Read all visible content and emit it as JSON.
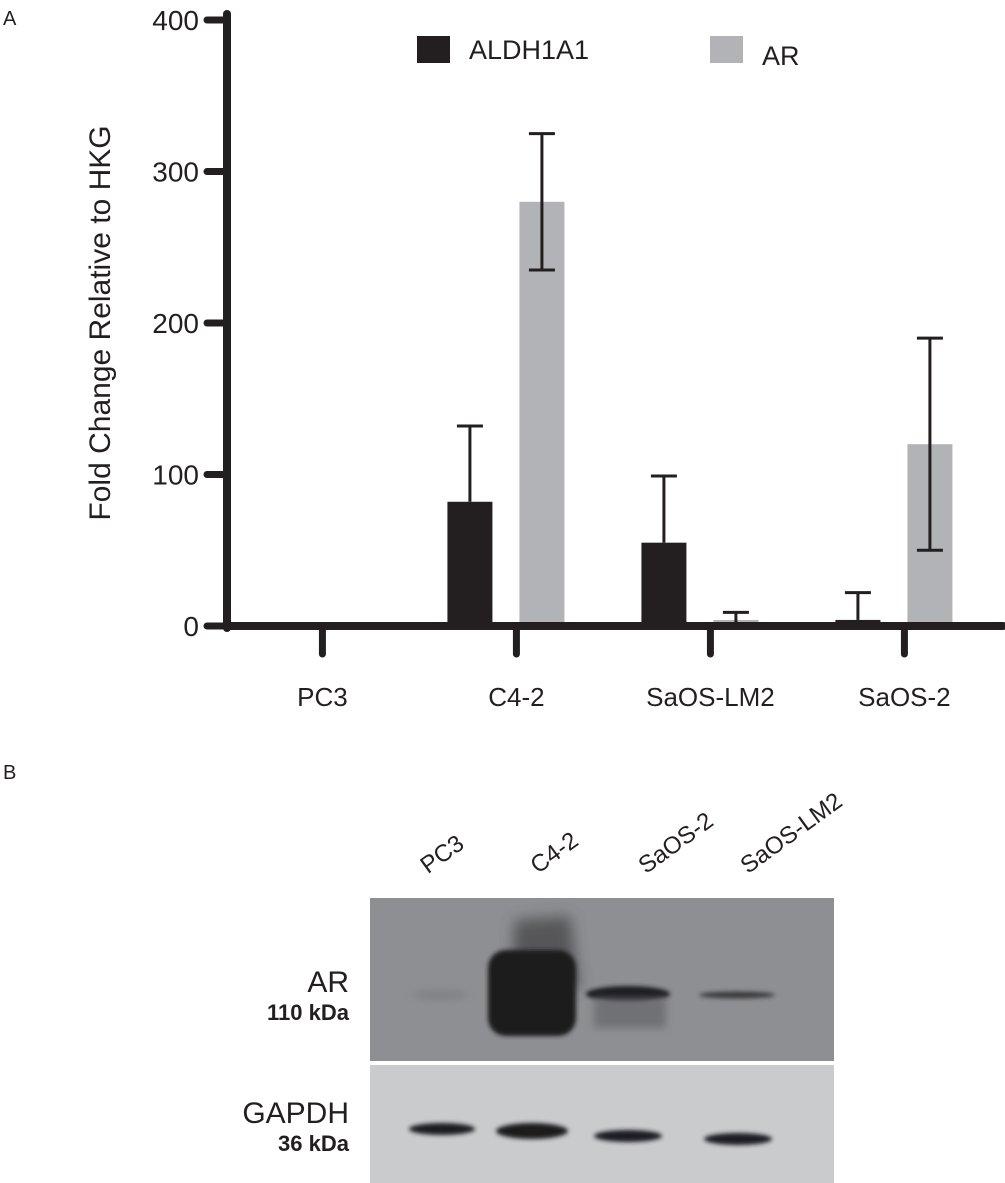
{
  "panels": {
    "a": "A",
    "b": "B"
  },
  "chart_data": {
    "type": "bar",
    "title": "",
    "xlabel": "",
    "ylabel": "Fold Change Relative to HKG",
    "ylim": [
      0,
      400
    ],
    "yticks": [
      0,
      100,
      200,
      300,
      400
    ],
    "categories": [
      "PC3",
      "C4-2",
      "SaOS-LM2",
      "SaOS-2"
    ],
    "series": [
      {
        "name": "ALDH1A1",
        "color": "#231f20",
        "values": [
          0,
          82,
          55,
          4
        ],
        "errors": [
          0,
          50,
          44,
          18
        ]
      },
      {
        "name": "AR",
        "color": "#b1b3b6",
        "values": [
          1,
          280,
          4,
          120
        ],
        "errors": [
          0,
          45,
          5,
          70
        ]
      }
    ],
    "legend_position": "top",
    "grid": false
  },
  "western_blot": {
    "lanes": [
      "PC3",
      "C4-2",
      "SaOS-2",
      "SaOS-LM2"
    ],
    "rows": [
      {
        "protein": "AR",
        "size": "110 kDa"
      },
      {
        "protein": "GAPDH",
        "size": "36 kDa"
      }
    ]
  }
}
